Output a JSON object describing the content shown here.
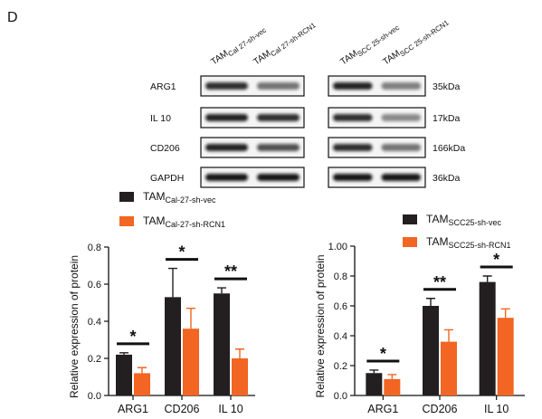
{
  "panel_label": "D",
  "blot": {
    "columns": [
      {
        "main": "TAM",
        "sub": "Cal 27-sh-vec"
      },
      {
        "main": "TAM",
        "sub": "Cal 27-sh-RCN1"
      },
      {
        "main": "TAM",
        "sub": "SCC 25-sh-vec"
      },
      {
        "main": "TAM",
        "sub": "SCC 25-sh-RCN1"
      }
    ],
    "rows": [
      {
        "label": "ARG1",
        "size": "35kDa"
      },
      {
        "label": "IL 10",
        "size": "17kDa"
      },
      {
        "label": "CD206",
        "size": "166kDa"
      },
      {
        "label": "GAPDH",
        "size": "36kDa"
      }
    ]
  },
  "chart_data": [
    {
      "type": "bar",
      "ylabel": "Relative expression of protein",
      "categories": [
        "ARG1",
        "CD206",
        "IL 10"
      ],
      "series": [
        {
          "name": {
            "main": "TAM",
            "sub": "Cal-27-sh-vec"
          },
          "color": "#231f20",
          "values": [
            0.22,
            0.53,
            0.55
          ],
          "errors": [
            0.01,
            0.155,
            0.03
          ]
        },
        {
          "name": {
            "main": "TAM",
            "sub": "Cal-27-sh-RCN1"
          },
          "color": "#f26522",
          "values": [
            0.12,
            0.36,
            0.2
          ],
          "errors": [
            0.03,
            0.11,
            0.05
          ]
        }
      ],
      "significance": [
        "*",
        "*",
        "**"
      ],
      "ylim": [
        0,
        0.8
      ],
      "yticks": [
        {
          "value": 0,
          "label": "0.0"
        },
        0.2,
        0.4,
        0.6,
        0.8
      ]
    },
    {
      "type": "bar",
      "ylabel": "Relative expression of  protein",
      "categories": [
        "ARG1",
        "CD206",
        "IL 10"
      ],
      "series": [
        {
          "name": {
            "main": "TAM",
            "sub": "SCC25-sh-vec"
          },
          "color": "#231f20",
          "values": [
            0.15,
            0.6,
            0.76
          ],
          "errors": [
            0.02,
            0.05,
            0.04
          ]
        },
        {
          "name": {
            "main": "TAM",
            "sub": "SCC25-sh-RCN1"
          },
          "color": "#f26522",
          "values": [
            0.11,
            0.36,
            0.52
          ],
          "errors": [
            0.03,
            0.08,
            0.06
          ]
        }
      ],
      "significance": [
        "*",
        "**",
        "*"
      ],
      "ylim": [
        0,
        1
      ],
      "yticks": [
        {
          "value": 0,
          "label": "0.0"
        },
        0.2,
        0.4,
        0.6,
        0.8,
        {
          "value": 1,
          "label": "1.00"
        }
      ]
    }
  ]
}
